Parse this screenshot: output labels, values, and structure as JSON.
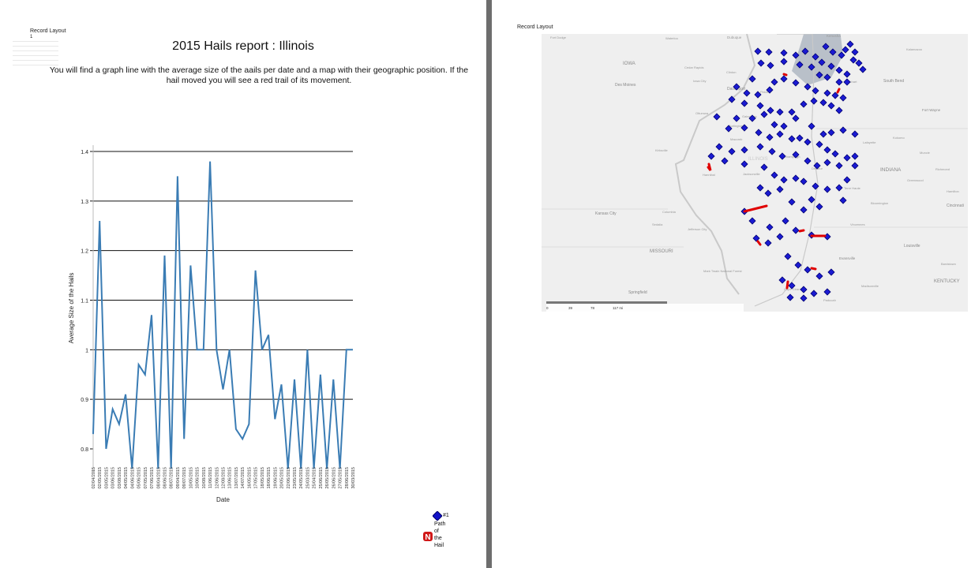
{
  "left_page": {
    "record_layout_label": "Record Layout",
    "record_number": "1",
    "title": "2015 Hails report : Illinois",
    "subtitle": "You will find a graph line with the average size of the aails per date and a map with their geographic position. If the hail moved you will see a red trail of its movement."
  },
  "right_page": {
    "record_layout_label": "Record Layout"
  },
  "chart_data": {
    "type": "line",
    "title": "",
    "xlabel": "Date",
    "ylabel": "Average Size of the Hails",
    "ylim": [
      0.8,
      1.4
    ],
    "yticks": [
      0.8,
      0.9,
      1,
      1.1,
      1.2,
      1.3,
      1.4
    ],
    "grid": true,
    "series_color": "#3a7cb4",
    "x": [
      "02/04/2015",
      "02/05/2015",
      "03/05/2015",
      "03/06/2015",
      "03/08/2015",
      "04/05/2015",
      "04/06/2015",
      "05/06/2015",
      "07/05/2015",
      "07/06/2015",
      "08/04/2015",
      "08/06/2015",
      "08/07/2015",
      "09/04/2015",
      "09/07/2015",
      "10/05/2015",
      "10/06/2015",
      "10/08/2015",
      "11/06/2015",
      "12/06/2015",
      "12/08/2015",
      "13/06/2015",
      "13/07/2015",
      "14/07/2015",
      "16/05/2015",
      "17/05/2015",
      "18/05/2015",
      "18/06/2015",
      "19/06/2015",
      "20/05/2015",
      "22/06/2015",
      "23/05/2015",
      "24/05/2015",
      "25/03/2015",
      "25/04/2015",
      "25/06/2015",
      "26/05/2015",
      "26/06/2015",
      "27/05/2015",
      "28/06/2015",
      "30/03/2015"
    ],
    "values": [
      0.83,
      1.26,
      0.8,
      0.88,
      0.85,
      0.91,
      0.76,
      0.97,
      0.95,
      1.07,
      0.76,
      1.19,
      0.76,
      1.35,
      0.82,
      1.17,
      1.0,
      1.0,
      1.38,
      1.0,
      0.92,
      1.0,
      0.84,
      0.82,
      0.85,
      1.16,
      1.0,
      1.03,
      0.86,
      0.93,
      0.76,
      0.94,
      0.76,
      1.0,
      0.76,
      0.95,
      0.76,
      0.94,
      0.76,
      1.0,
      1.0
    ]
  },
  "legend": {
    "items": [
      {
        "label": "#1",
        "symbol": "blue-diamond"
      },
      {
        "label": "Path of the Hail",
        "symbol": "red-path-marker",
        "glyph": "N"
      }
    ]
  },
  "map": {
    "labels": [
      "Fort Dodge",
      "Waterloo",
      "Dubuque",
      "Kenosha",
      "Kalamazoo",
      "Jackson",
      "IOWA",
      "Cedar Rapids",
      "Clinton",
      "Des Moines",
      "Iowa City",
      "Davenport",
      "Pekin",
      "Elkhart",
      "South Bend",
      "Ottumwa",
      "Galesburg",
      "Fort Wayne",
      "Burlington",
      "Kirksville",
      "Macomb",
      "Champaign",
      "Lafayette",
      "Kokomo",
      "Muncie",
      "Hannibal",
      "ILLINOIS",
      "Decatur",
      "INDIANA",
      "Richmond",
      "Jacksonville",
      "Greenwood",
      "Hamilton",
      "Terre Haute",
      "Bloomington",
      "Cincinnati",
      "Kansas City",
      "Columbia",
      "Sedalia",
      "Jefferson City",
      "Vincennes",
      "Louisville",
      "MISSOURI",
      "Evansville",
      "Bardstown",
      "Lexington",
      "Mark Twain National Forest",
      "Cape Girardeau",
      "Madisonville",
      "KENTUCKY",
      "Springfield",
      "Paducah",
      "Bowling Green",
      "Hopkinsville",
      "© Mapbox © OpenStreetMap"
    ],
    "scale_labels": [
      "0",
      "39",
      "78",
      "117 mi"
    ]
  }
}
